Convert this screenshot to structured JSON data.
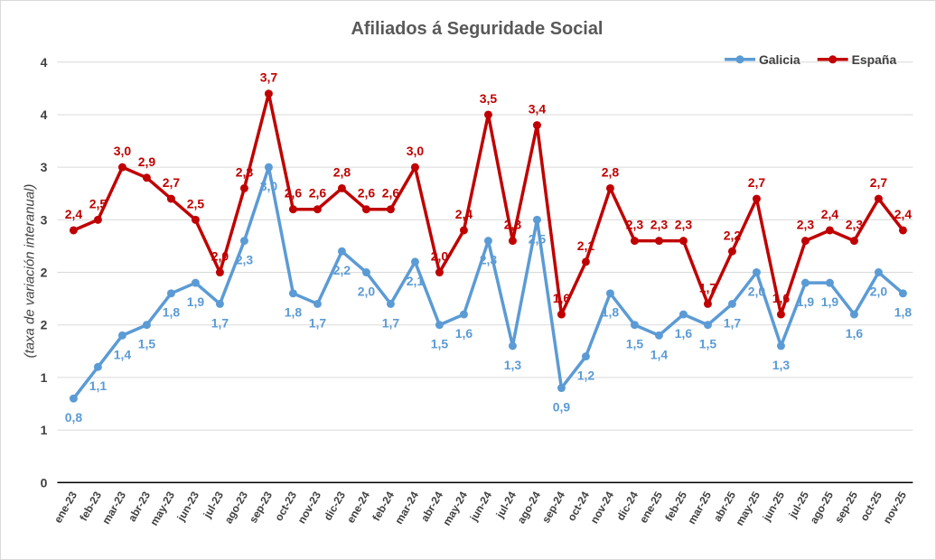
{
  "chart_data": {
    "type": "line",
    "title": "Afiliados á Seguridade Social",
    "xlabel": "",
    "ylabel": "(taxa de variación interanual)",
    "ylim": [
      0,
      4
    ],
    "yticks": [
      0,
      0.5,
      1,
      1.5,
      2,
      2.5,
      3,
      3.5,
      4
    ],
    "ytick_labels": [
      "0",
      "1",
      "1",
      "2",
      "2",
      "3",
      "3",
      "4",
      "4"
    ],
    "grid": true,
    "legend_position": "top-right",
    "categories": [
      "ene-23",
      "feb-23",
      "mar-23",
      "abr-23",
      "may-23",
      "jun-23",
      "jul-23",
      "ago-23",
      "sep-23",
      "oct-23",
      "nov-23",
      "dic-23",
      "ene-24",
      "feb-24",
      "mar-24",
      "abr-24",
      "may-24",
      "jun-24",
      "jul-24",
      "ago-24",
      "sep-24",
      "oct-24",
      "nov-24",
      "dic-24",
      "ene-25",
      "feb-25",
      "mar-25",
      "abr-25",
      "may-25",
      "jun-25",
      "jul-25",
      "ago-25",
      "sep-25",
      "oct-25",
      "nov-25"
    ],
    "series": [
      {
        "name": "Galicia",
        "color": "#5b9bd5",
        "values": [
          0.8,
          1.1,
          1.4,
          1.5,
          1.8,
          1.9,
          1.7,
          2.3,
          3.0,
          1.8,
          1.7,
          2.2,
          2.0,
          1.7,
          2.1,
          1.5,
          1.6,
          2.3,
          1.3,
          2.5,
          0.9,
          1.2,
          1.8,
          1.5,
          1.4,
          1.6,
          1.5,
          1.7,
          2.0,
          1.3,
          1.9,
          1.9,
          1.6,
          2.0,
          1.8
        ]
      },
      {
        "name": "España",
        "color": "#c00000",
        "values": [
          2.4,
          2.5,
          3.0,
          2.9,
          2.7,
          2.5,
          2.0,
          2.8,
          3.7,
          2.6,
          2.6,
          2.8,
          2.6,
          2.6,
          3.0,
          2.0,
          2.4,
          3.5,
          2.3,
          3.4,
          1.6,
          2.1,
          2.8,
          2.3,
          2.3,
          2.3,
          1.7,
          2.2,
          2.7,
          1.6,
          2.3,
          2.4,
          2.3,
          2.7,
          2.4
        ]
      }
    ]
  }
}
